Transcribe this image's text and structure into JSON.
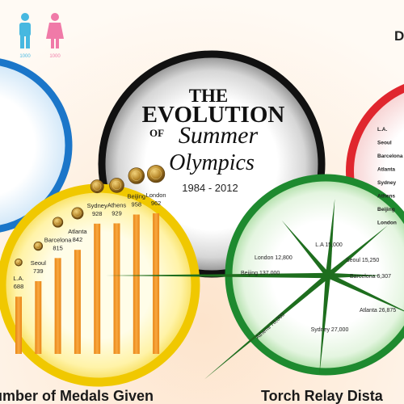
{
  "title": {
    "the": "THE",
    "evolution": "EVOLUTION",
    "of": "OF",
    "summer": "Summer",
    "olympics": "Olympics",
    "years": "1984 - 2012"
  },
  "people": {
    "male_value": "1000",
    "female_value": "1000",
    "male_color": "#47b8e0",
    "female_color": "#f07aa8"
  },
  "corner_letter": "D",
  "medals": {
    "heading": "umber of Medals Given",
    "bar_color": "#f0952a",
    "ring_color": "#f0c800"
  },
  "torch": {
    "heading": "Torch Relay Dista",
    "ring_color": "#1e8a2f"
  },
  "red_list": {
    "ring_color": "#e0262e",
    "items": [
      "L.A.",
      "Seoul",
      "Barcelona",
      "Atlanta",
      "Sydney",
      "Athens",
      "Beijing",
      "London"
    ]
  },
  "chart_data": [
    {
      "type": "bar",
      "title": "umber of Medals Given",
      "categories": [
        "L.A.",
        "Seoul",
        "Barcelona",
        "Atlanta",
        "Sydney",
        "Athens",
        "Beijing",
        "London"
      ],
      "values": [
        688,
        739,
        815,
        842,
        928,
        929,
        958,
        962
      ],
      "value_labels": [
        "688",
        "739",
        "815",
        "842",
        "928",
        "929",
        "958",
        "962"
      ],
      "ylim": [
        500,
        1000
      ]
    },
    {
      "type": "radial",
      "title": "Torch Relay Dista",
      "items": [
        {
          "label": "L.A 15,000",
          "value": 15000,
          "angle": 85
        },
        {
          "label": "Seoul 15,250",
          "value": 15250,
          "angle": 40
        },
        {
          "label": "Barcelona 6,307",
          "value": 6307,
          "angle": 0
        },
        {
          "label": "Atlanta 26,875",
          "value": 26875,
          "angle": -25
        },
        {
          "label": "Sydney 27,000",
          "value": 27000,
          "angle": -95
        },
        {
          "label": "Athens 78,000",
          "value": 78000,
          "angle": -140
        },
        {
          "label": "Beijing 137,000",
          "value": 137000,
          "angle": 180
        },
        {
          "label": "London 12,800",
          "value": 12800,
          "angle": 130
        }
      ]
    }
  ]
}
